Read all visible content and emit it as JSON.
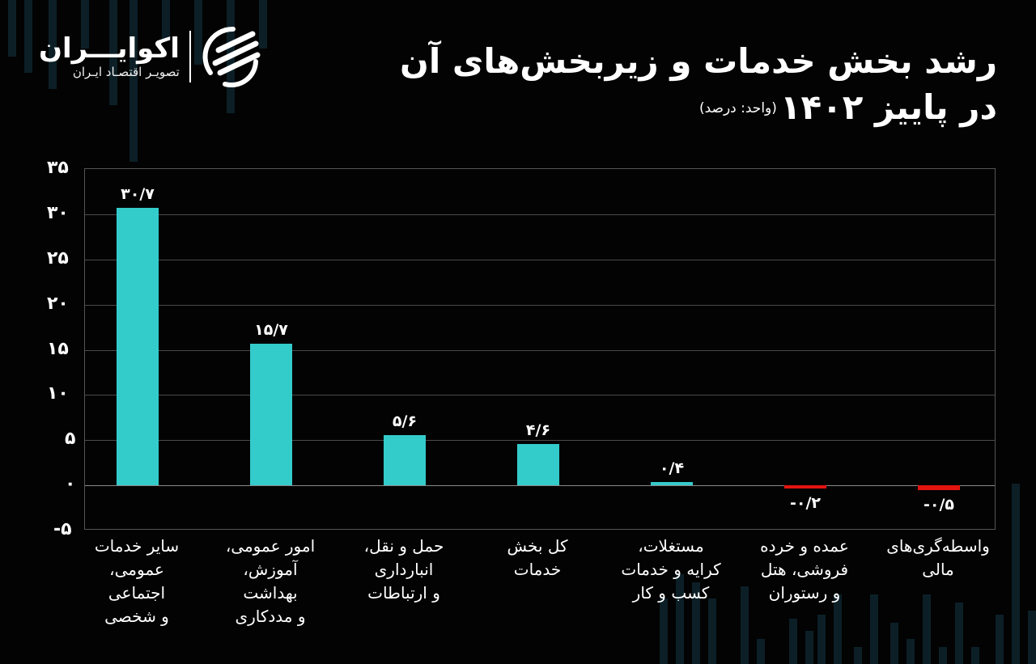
{
  "brand": {
    "name": "اکوایـــران",
    "tagline": "تصویـر اقتصـاد ایـران",
    "logo_icon": "ecoiran-stripes-logo"
  },
  "title": {
    "line1": "رشد بخش خدمات و زیربخش‌های آن",
    "line2": "در پاییز ۱۴۰۲",
    "unit": "(واحد: درصد)"
  },
  "colors": {
    "background": "#030303",
    "positive_bar": "#34cbcb",
    "negative_bar": "#e3140f",
    "gridline": "#4a4a4a",
    "text": "#ffffff"
  },
  "y_axis": {
    "ticks": [
      "۳۵",
      "۳۰",
      "۲۵",
      "۲۰",
      "۱۵",
      "۱۰",
      "۵",
      "۰",
      "-۵"
    ]
  },
  "bars": [
    {
      "label_lines": [
        "سایر خدمات",
        "عمومی،",
        "اجتماعی",
        "و شخصی"
      ],
      "value_label": "۳۰/۷"
    },
    {
      "label_lines": [
        "امور عمومی،",
        "آموزش،",
        "بهداشت",
        "و مددکاری"
      ],
      "value_label": "۱۵/۷"
    },
    {
      "label_lines": [
        "حمل و نقل،",
        "انبارداری",
        "و ارتباطات"
      ],
      "value_label": "۵/۶"
    },
    {
      "label_lines": [
        "کل بخش",
        "خدمات"
      ],
      "value_label": "۴/۶"
    },
    {
      "label_lines": [
        "مستغلات،",
        "کرایه و خدمات",
        "کسب و کار"
      ],
      "value_label": "۰/۴"
    },
    {
      "label_lines": [
        "عمده و خرده",
        "فروشی، هتل",
        "و رستوران"
      ],
      "value_label": "-۰/۲"
    },
    {
      "label_lines": [
        "واسطه‌گری‌های",
        "مالی"
      ],
      "value_label": "-۰/۵"
    }
  ],
  "chart_data": {
    "type": "bar",
    "title": "رشد بخش خدمات و زیربخش‌های آن در پاییز ۱۴۰۲",
    "subtitle": "(واحد: درصد)",
    "xlabel": "",
    "ylabel": "درصد",
    "categories": [
      "سایر خدمات عمومی، اجتماعی و شخصی",
      "امور عمومی، آموزش، بهداشت و مددکاری",
      "حمل و نقل، انبارداری و ارتباطات",
      "کل بخش خدمات",
      "مستغلات، کرایه و خدمات کسب و کار",
      "عمده و خرده فروشی، هتل و رستوران",
      "واسطه‌گری‌های مالی"
    ],
    "values": [
      30.7,
      15.7,
      5.6,
      4.6,
      0.4,
      -0.2,
      -0.5
    ],
    "ylim": [
      -5,
      35
    ],
    "yticks": [
      -5,
      0,
      5,
      10,
      15,
      20,
      25,
      30,
      35
    ],
    "grid": true,
    "legend": "none",
    "bar_colors": [
      "#34cbcb",
      "#34cbcb",
      "#34cbcb",
      "#34cbcb",
      "#34cbcb",
      "#e3140f",
      "#e3140f"
    ]
  }
}
